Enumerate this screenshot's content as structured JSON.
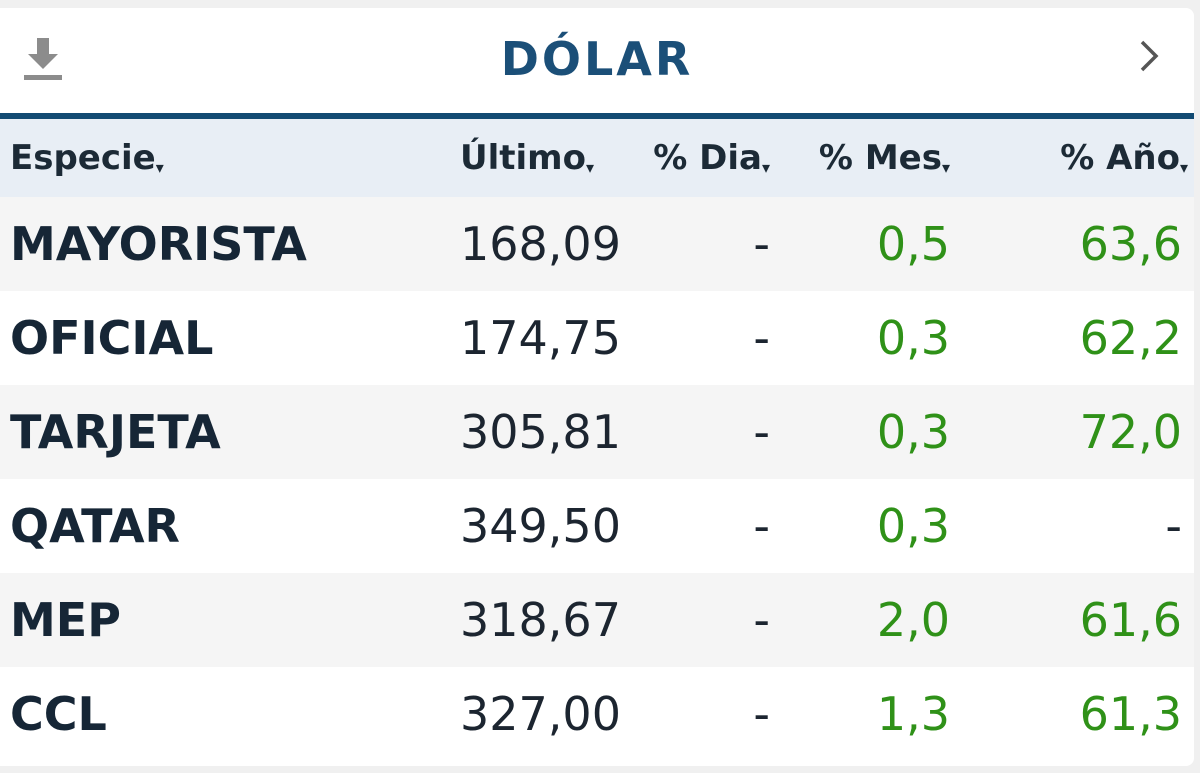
{
  "header": {
    "title": "DÓLAR"
  },
  "table": {
    "columns": [
      "Especie",
      "Último",
      "% Dia",
      "% Mes",
      "% Año"
    ],
    "rows": [
      [
        "MAYORISTA",
        "168,09",
        "-",
        "0,5",
        "63,6"
      ],
      [
        "OFICIAL",
        "174,75",
        "-",
        "0,3",
        "62,2"
      ],
      [
        "TARJETA",
        "305,81",
        "-",
        "0,3",
        "72,0"
      ],
      [
        "QATAR",
        "349,50",
        "-",
        "0,3",
        "-"
      ],
      [
        "MEP",
        "318,67",
        "-",
        "2,0",
        "61,6"
      ],
      [
        "CCL",
        "327,00",
        "-",
        "1,3",
        "61,3"
      ]
    ]
  }
}
